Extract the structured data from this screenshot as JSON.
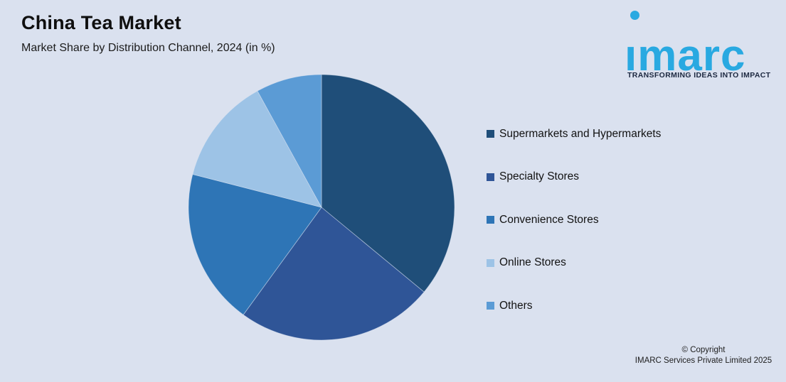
{
  "page": {
    "title": "China Tea Market",
    "subtitle": "Market Share by Distribution Channel, 2024 (in %)",
    "background_color": "#dae1ef"
  },
  "logo": {
    "brand": "imarc",
    "tagline": "TRANSFORMING IDEAS INTO IMPACT",
    "brand_color": "#29a9e1",
    "tagline_color": "#1c2840"
  },
  "chart_data": {
    "type": "pie",
    "title": "China Tea Market",
    "subtitle": "Market Share by Distribution Channel, 2024 (in %)",
    "unit": "%",
    "start_angle_deg": 0,
    "direction": "clockwise",
    "legend_position": "right",
    "data_labels_shown": false,
    "slices": [
      {
        "label": "Supermarkets and Hypermarkets",
        "value": 36,
        "color": "#1f4e79"
      },
      {
        "label": "Specialty Stores",
        "value": 24,
        "color": "#2f5597"
      },
      {
        "label": "Convenience Stores",
        "value": 19,
        "color": "#2e75b6"
      },
      {
        "label": "Online Stores",
        "value": 13,
        "color": "#9dc3e6"
      },
      {
        "label": "Others",
        "value": 8,
        "color": "#5b9bd5"
      }
    ]
  },
  "footer": {
    "copyright_line1": "© Copyright",
    "copyright_line2": "IMARC Services Private Limited 2025"
  }
}
